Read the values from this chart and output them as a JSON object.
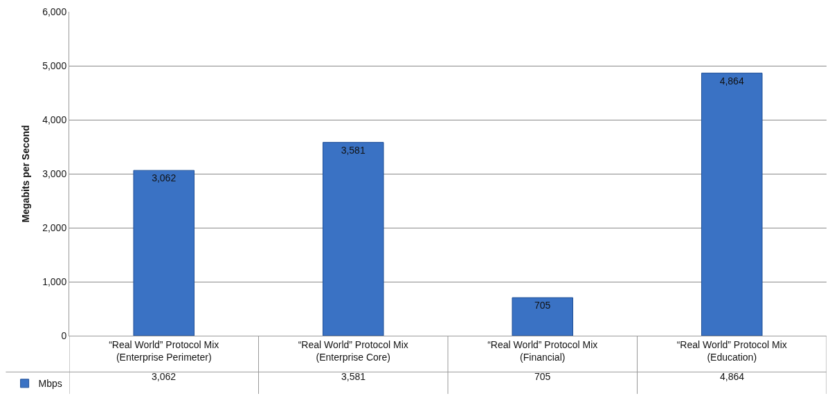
{
  "chart_data": {
    "type": "bar",
    "ylabel": "Megabits per Second",
    "categories": [
      "“Real World” Protocol Mix\n(Enterprise Perimeter)",
      "“Real World” Protocol Mix\n(Enterprise Core)",
      "“Real World” Protocol Mix\n(Financial)",
      "“Real World” Protocol Mix\n(Education)"
    ],
    "series": [
      {
        "name": "Mbps",
        "color": "#3a72c4",
        "values": [
          3062,
          3581,
          705,
          4864
        ],
        "value_labels": [
          "3,062",
          "3,581",
          "705",
          "4,864"
        ]
      }
    ],
    "ylim": [
      0,
      6000
    ],
    "yticks": [
      0,
      {
        "value": 1000,
        "label": "1,000"
      },
      {
        "value": 2000,
        "label": "2,000"
      },
      {
        "value": 3000,
        "label": "3,000"
      },
      {
        "value": 4000,
        "label": "4,000"
      },
      {
        "value": 5000,
        "label": "5,000"
      },
      {
        "value": 6000,
        "label": "6,000"
      }
    ],
    "grid": "y",
    "legend": "bottom left"
  }
}
